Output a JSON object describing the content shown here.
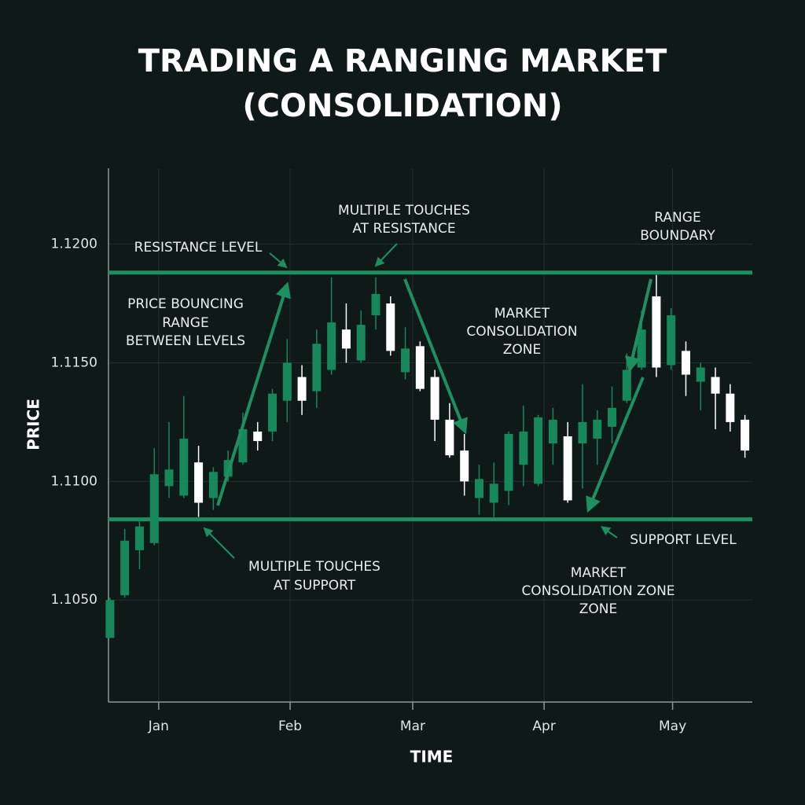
{
  "chart_data": {
    "type": "candlestick",
    "title": [
      "TRADING A RANGING MARKET",
      "(CONSOLIDATION)"
    ],
    "y_label": "PRICE",
    "x_label": "TIME",
    "x": [
      0,
      1,
      2,
      3,
      4,
      5,
      6,
      7,
      8,
      9,
      10,
      11,
      12,
      13,
      14,
      15,
      16,
      17,
      18,
      19,
      20,
      21,
      22,
      23,
      24,
      25,
      26,
      27,
      28,
      29,
      30,
      31,
      32,
      33,
      34,
      35,
      36,
      37,
      38,
      39,
      40,
      41,
      42,
      43
    ],
    "open": [
      1.1034,
      1.1052,
      1.1071,
      1.1074,
      1.1098,
      1.1094,
      1.1108,
      1.1093,
      1.1102,
      1.1108,
      1.1121,
      1.1121,
      1.1134,
      1.1144,
      1.1138,
      1.1147,
      1.1164,
      1.1151,
      1.117,
      1.1175,
      1.1146,
      1.1157,
      1.1144,
      1.1126,
      1.1113,
      1.1093,
      1.1091,
      1.1096,
      1.1107,
      1.1099,
      1.1116,
      1.1119,
      1.1116,
      1.1118,
      1.1123,
      1.1134,
      1.1148,
      1.1178,
      1.1149,
      1.1155,
      1.1142,
      1.1144,
      1.1137,
      1.1126
    ],
    "high": [
      1.1051,
      1.108,
      1.1084,
      1.1114,
      1.1125,
      1.1136,
      1.1115,
      1.1106,
      1.1113,
      1.1129,
      1.1125,
      1.1139,
      1.116,
      1.1149,
      1.1164,
      1.1186,
      1.1175,
      1.1172,
      1.1186,
      1.1178,
      1.1165,
      1.1159,
      1.1147,
      1.1133,
      1.112,
      1.1107,
      1.1108,
      1.1121,
      1.1132,
      1.1128,
      1.1131,
      1.1125,
      1.1141,
      1.113,
      1.114,
      1.1154,
      1.1172,
      1.1187,
      1.1173,
      1.1159,
      1.115,
      1.1148,
      1.1141,
      1.1128
    ],
    "low": [
      1.1034,
      1.1051,
      1.1063,
      1.1073,
      1.1093,
      1.1093,
      1.1085,
      1.1088,
      1.11,
      1.1107,
      1.1113,
      1.1117,
      1.1125,
      1.1128,
      1.1131,
      1.1145,
      1.115,
      1.115,
      1.1164,
      1.1153,
      1.1143,
      1.1138,
      1.1117,
      1.111,
      1.1094,
      1.1086,
      1.1085,
      1.109,
      1.1098,
      1.1098,
      1.1107,
      1.1091,
      1.1097,
      1.1107,
      1.1116,
      1.1133,
      1.1147,
      1.1144,
      1.1147,
      1.1136,
      1.113,
      1.1122,
      1.1121,
      1.111
    ],
    "close": [
      1.105,
      1.1075,
      1.1081,
      1.1103,
      1.1105,
      1.1118,
      1.1091,
      1.1104,
      1.1109,
      1.1122,
      1.1117,
      1.1137,
      1.115,
      1.1134,
      1.1158,
      1.1167,
      1.1156,
      1.1166,
      1.1179,
      1.1155,
      1.1156,
      1.1139,
      1.1126,
      1.1111,
      1.11,
      1.1101,
      1.1099,
      1.112,
      1.1121,
      1.1127,
      1.1126,
      1.1092,
      1.1125,
      1.1126,
      1.1131,
      1.1147,
      1.1164,
      1.1148,
      1.117,
      1.1145,
      1.1148,
      1.1137,
      1.1125,
      1.1113
    ],
    "up_color": "#17875c",
    "down_color": "#ffffff",
    "ylim": [
      1.1007,
      1.1232
    ],
    "yticks": [
      {
        "value": 1.105,
        "label": "1.1050"
      },
      {
        "value": 1.11,
        "label": "1.1100"
      },
      {
        "value": 1.115,
        "label": "1.1150"
      },
      {
        "value": 1.12,
        "label": "1.1200"
      }
    ],
    "xlim": [
      -0.1,
      43.5
    ],
    "xticks": [
      {
        "value": 3.3,
        "label": "Jan"
      },
      {
        "value": 12.2,
        "label": "Feb"
      },
      {
        "value": 20.5,
        "label": "Mar"
      },
      {
        "value": 29.4,
        "label": "Apr"
      },
      {
        "value": 38.1,
        "label": "May"
      }
    ],
    "grid": true,
    "levels": [
      {
        "value": 1.1188,
        "color": "#1f8f62"
      },
      {
        "value": 1.1084,
        "color": "#1f8f62"
      }
    ],
    "annotations": [
      [
        "RESISTANCE LEVEL"
      ],
      [
        "MULTIPLE TOUCHES",
        "AT RESISTANCE"
      ],
      [
        "RANGE",
        "BOUNDARY"
      ],
      [
        "PRICE BOUNCING",
        "RANGE",
        "BETWEEN LEVELS"
      ],
      [
        "MARKET",
        "CONSOLIDATION",
        "ZONE"
      ],
      [
        "MULTIPLE TOUCHES",
        "AT SUPPORT"
      ],
      [
        "SUPPORT LEVEL"
      ],
      [
        "MARKET",
        "CONSOLIDATION ZONE",
        "ZONE"
      ]
    ]
  }
}
